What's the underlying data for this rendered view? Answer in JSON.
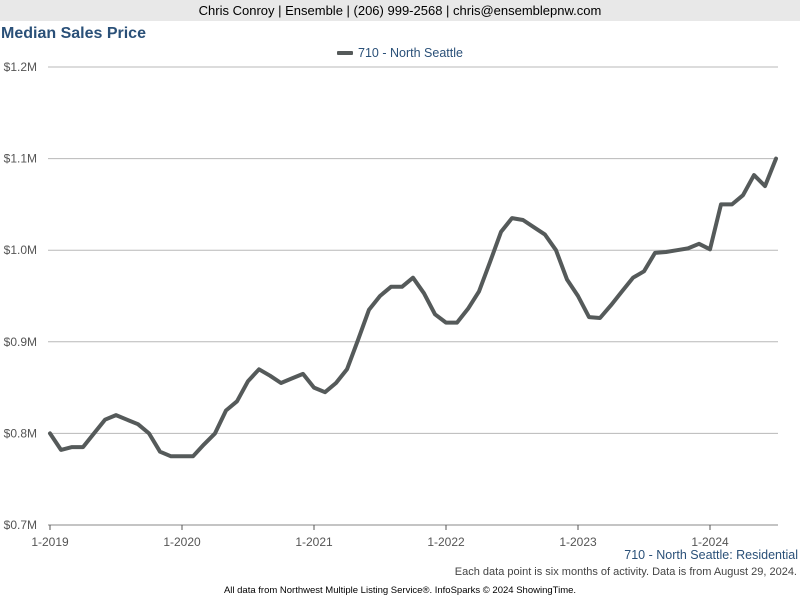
{
  "header": {
    "contact": "Chris Conroy | Ensemble | (206) 999-2568 | chris@ensemblepnw.com"
  },
  "footer": {
    "series_label": "710 - North Seattle: Residential",
    "note": "Each data point is six months of activity. Data is from August 29, 2024.",
    "credit": "All data from Northwest Multiple Listing Service®. InfoSparks © 2024 ShowingTime."
  },
  "colors": {
    "line": "#555a5a",
    "title": "#2a5078",
    "grid": "#b8b8b8"
  },
  "chart_data": {
    "type": "line",
    "title": "Median Sales Price",
    "xlabel": "",
    "ylabel": "",
    "ylim": [
      700000,
      1200000
    ],
    "y_ticks": [
      {
        "value": 700000,
        "label": "$0.7M"
      },
      {
        "value": 800000,
        "label": "$0.8M"
      },
      {
        "value": 900000,
        "label": "$0.9M"
      },
      {
        "value": 1000000,
        "label": "$1.0M"
      },
      {
        "value": 1100000,
        "label": "$1.1M"
      },
      {
        "value": 1200000,
        "label": "$1.2M"
      }
    ],
    "x_ticks": [
      "1-2019",
      "1-2020",
      "1-2021",
      "1-2022",
      "1-2023",
      "1-2024"
    ],
    "grid": true,
    "legend_position": "top-center",
    "series": [
      {
        "name": "710 - North Seattle",
        "x": [
          "1-2019",
          "2-2019",
          "3-2019",
          "4-2019",
          "5-2019",
          "6-2019",
          "7-2019",
          "8-2019",
          "9-2019",
          "10-2019",
          "11-2019",
          "12-2019",
          "1-2020",
          "2-2020",
          "3-2020",
          "4-2020",
          "5-2020",
          "6-2020",
          "7-2020",
          "8-2020",
          "9-2020",
          "10-2020",
          "11-2020",
          "12-2020",
          "1-2021",
          "2-2021",
          "3-2021",
          "4-2021",
          "5-2021",
          "6-2021",
          "7-2021",
          "8-2021",
          "9-2021",
          "10-2021",
          "11-2021",
          "12-2021",
          "1-2022",
          "2-2022",
          "3-2022",
          "4-2022",
          "5-2022",
          "6-2022",
          "7-2022",
          "8-2022",
          "9-2022",
          "10-2022",
          "11-2022",
          "12-2022",
          "1-2023",
          "2-2023",
          "3-2023",
          "4-2023",
          "5-2023",
          "6-2023",
          "7-2023",
          "8-2023",
          "9-2023",
          "10-2023",
          "11-2023",
          "12-2023",
          "1-2024",
          "2-2024",
          "3-2024",
          "4-2024",
          "5-2024",
          "6-2024",
          "7-2024"
        ],
        "values": [
          800000,
          782000,
          785000,
          785000,
          800000,
          815000,
          820000,
          815000,
          810000,
          800000,
          780000,
          775000,
          775000,
          775000,
          788000,
          800000,
          825000,
          835000,
          857000,
          870000,
          863000,
          855000,
          860000,
          865000,
          850000,
          845000,
          855000,
          870000,
          902000,
          935000,
          950000,
          960000,
          960000,
          970000,
          953000,
          930000,
          921000,
          921000,
          936000,
          955000,
          987000,
          1020000,
          1035000,
          1033000,
          1025000,
          1017000,
          1000000,
          968000,
          950000,
          927000,
          926000,
          940000,
          955000,
          970000,
          977000,
          997000,
          998000,
          1000000,
          1002000,
          1007000,
          1001000,
          1050000,
          1050000,
          1060000,
          1082000,
          1070000,
          1100000
        ]
      }
    ]
  }
}
